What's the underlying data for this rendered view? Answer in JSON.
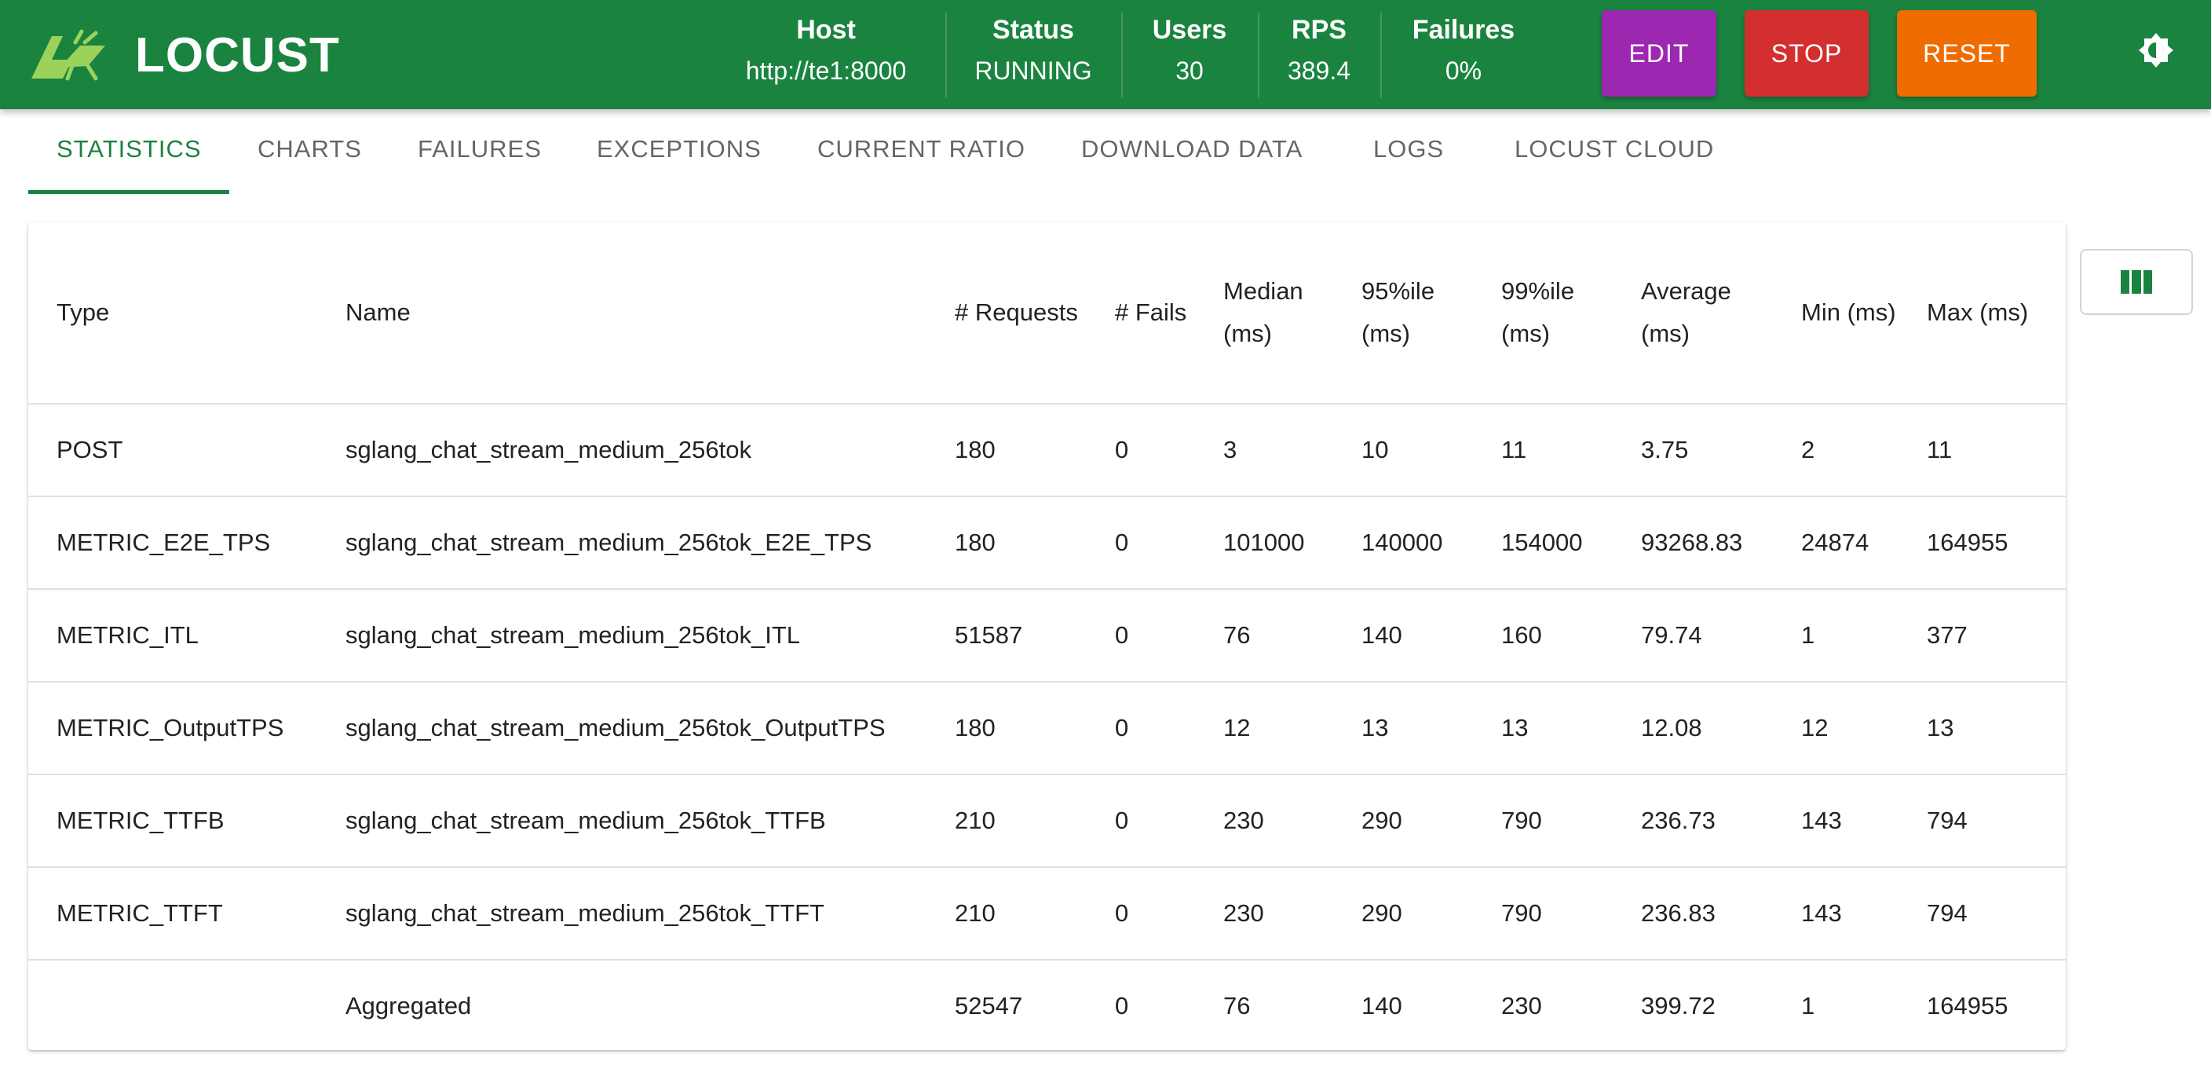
{
  "app": {
    "name": "LOCUST"
  },
  "header": {
    "stats": [
      {
        "label": "Host",
        "value": "http://te1:8000"
      },
      {
        "label": "Status",
        "value": "RUNNING"
      },
      {
        "label": "Users",
        "value": "30"
      },
      {
        "label": "RPS",
        "value": "389.4"
      },
      {
        "label": "Failures",
        "value": "0%"
      }
    ],
    "buttons": {
      "edit": "EDIT",
      "stop": "STOP",
      "reset": "RESET"
    },
    "colors": {
      "appbar": "#1b8340",
      "edit": "#9c27b0",
      "stop": "#d32f2f",
      "reset": "#ef6c00"
    }
  },
  "tabs": [
    "STATISTICS",
    "CHARTS",
    "FAILURES",
    "EXCEPTIONS",
    "CURRENT RATIO",
    "DOWNLOAD DATA",
    "LOGS",
    "LOCUST CLOUD"
  ],
  "table": {
    "headers": [
      "Type",
      "Name",
      "# Requests",
      "# Fails",
      "Median (ms)",
      "95%ile (ms)",
      "99%ile (ms)",
      "Average (ms)",
      "Min (ms)",
      "Max (ms)"
    ],
    "rows": [
      [
        "POST",
        "sglang_chat_stream_medium_256tok",
        "180",
        "0",
        "3",
        "10",
        "11",
        "3.75",
        "2",
        "11"
      ],
      [
        "METRIC_E2E_TPS",
        "sglang_chat_stream_medium_256tok_E2E_TPS",
        "180",
        "0",
        "101000",
        "140000",
        "154000",
        "93268.83",
        "24874",
        "164955"
      ],
      [
        "METRIC_ITL",
        "sglang_chat_stream_medium_256tok_ITL",
        "51587",
        "0",
        "76",
        "140",
        "160",
        "79.74",
        "1",
        "377"
      ],
      [
        "METRIC_OutputTPS",
        "sglang_chat_stream_medium_256tok_OutputTPS",
        "180",
        "0",
        "12",
        "13",
        "13",
        "12.08",
        "12",
        "13"
      ],
      [
        "METRIC_TTFB",
        "sglang_chat_stream_medium_256tok_TTFB",
        "210",
        "0",
        "230",
        "290",
        "790",
        "236.73",
        "143",
        "794"
      ],
      [
        "METRIC_TTFT",
        "sglang_chat_stream_medium_256tok_TTFT",
        "210",
        "0",
        "230",
        "290",
        "790",
        "236.83",
        "143",
        "794"
      ],
      [
        "",
        "Aggregated",
        "52547",
        "0",
        "76",
        "140",
        "230",
        "399.72",
        "1",
        "164955"
      ]
    ]
  }
}
